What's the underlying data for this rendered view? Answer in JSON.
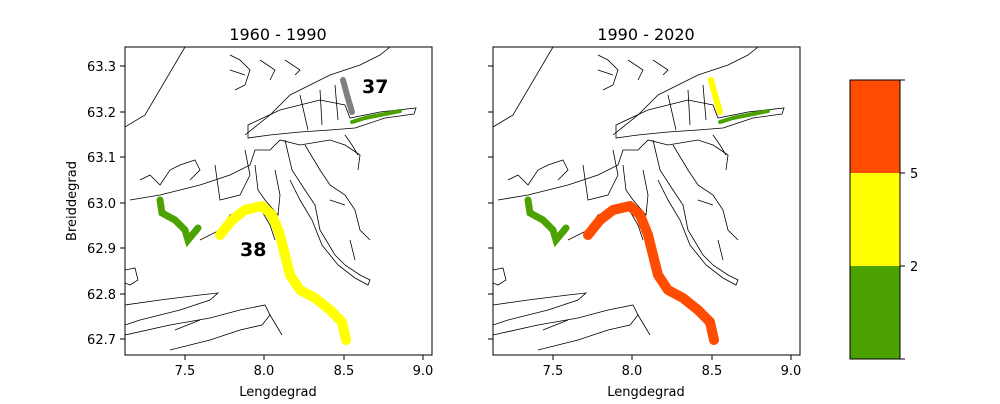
{
  "panels": [
    {
      "title": "1960 - 1990",
      "xlabel": "Lengdegrad",
      "ylabel": "Breiddegrad",
      "labels": [
        "37",
        "38"
      ],
      "segments": {
        "north_inner": "gray",
        "north_outer": "green",
        "south": "yellow",
        "west": "green"
      }
    },
    {
      "title": "1990 - 2020",
      "xlabel": "Lengdegrad",
      "ylabel": "",
      "labels": [],
      "segments": {
        "north_inner": "yellow",
        "north_outer": "green",
        "south": "red",
        "west": "green"
      }
    }
  ],
  "xticks": [
    "7.5",
    "8.0",
    "8.5",
    "9.0"
  ],
  "yticks": [
    "63.3",
    "63.2",
    "63.1",
    "63.0",
    "62.9",
    "62.8",
    "62.7"
  ],
  "colorbar": {
    "ticks": [
      "2",
      "5"
    ],
    "bins": [
      {
        "range": "< 2",
        "color": "#4ca300"
      },
      {
        "range": "2 - 5",
        "color": "#ffff00"
      },
      {
        "range": "> 5",
        "color": "#ff4c00"
      }
    ]
  },
  "colors": {
    "gray": "#808080",
    "green": "#4ca300",
    "yellow": "#ffff00",
    "red": "#ff4c00"
  }
}
